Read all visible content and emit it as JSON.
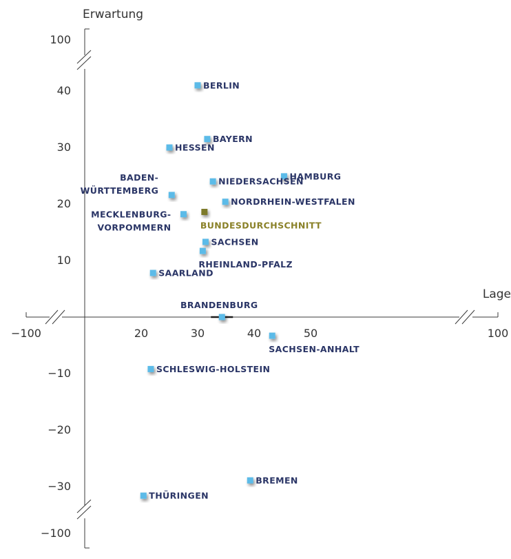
{
  "chart_data": {
    "type": "scatter",
    "xlabel": "Lage",
    "ylabel": "Erwartung",
    "xlim": [
      10,
      60
    ],
    "ylim": [
      -35,
      45
    ],
    "axis_break_x": true,
    "axis_break_y": true,
    "x_ticks": [
      {
        "label": "−100",
        "at": -100
      },
      {
        "label": "20",
        "at": 20
      },
      {
        "label": "30",
        "at": 30
      },
      {
        "label": "40",
        "at": 40
      },
      {
        "label": "50",
        "at": 50
      },
      {
        "label": "100",
        "at": 100
      }
    ],
    "y_ticks": [
      {
        "label": "100",
        "at": 100
      },
      {
        "label": "40",
        "at": 40
      },
      {
        "label": "30",
        "at": 30
      },
      {
        "label": "20",
        "at": 20
      },
      {
        "label": "10",
        "at": 10
      },
      {
        "label": "−10",
        "at": -10
      },
      {
        "label": "−20",
        "at": -20
      },
      {
        "label": "−30",
        "at": -30
      },
      {
        "label": "−100",
        "at": -100
      }
    ],
    "grid": false,
    "colors": {
      "point": "#5bbbe8",
      "average": "#7d7a2c",
      "label": "#2a3566",
      "average_label": "#8a8128"
    },
    "points": [
      {
        "name": "BERLIN",
        "x": 30,
        "y": 41,
        "placement": "right"
      },
      {
        "name": "HESSEN",
        "x": 25,
        "y": 30,
        "placement": "right"
      },
      {
        "name": "BAYERN",
        "x": 31.7,
        "y": 31.5,
        "placement": "right"
      },
      {
        "name": "HAMBURG",
        "x": 45.3,
        "y": 24.9,
        "placement": "right"
      },
      {
        "name": "BADEN-\nWÜRTTEMBERG",
        "x": 25.4,
        "y": 21.6,
        "placement": "left-above"
      },
      {
        "name": "NIEDERSACHSEN",
        "x": 32.7,
        "y": 24,
        "placement": "right"
      },
      {
        "name": "NORDRHEIN-WESTFALEN",
        "x": 34.9,
        "y": 20.4,
        "placement": "right"
      },
      {
        "name": "MECKLENBURG-\nVORPOMMERN",
        "x": 27.5,
        "y": 18.2,
        "placement": "left"
      },
      {
        "name": "BUNDESDURCHSCHNITT",
        "x": 31.2,
        "y": 18.6,
        "placement": "below",
        "average": true
      },
      {
        "name": "SACHSEN",
        "x": 31.4,
        "y": 13.3,
        "placement": "right"
      },
      {
        "name": "RHEINLAND-PFALZ",
        "x": 30.9,
        "y": 11.7,
        "placement": "below"
      },
      {
        "name": "SAARLAND",
        "x": 22.1,
        "y": 7.8,
        "placement": "right"
      },
      {
        "name": "BRANDENBURG",
        "x": 34.3,
        "y": 0,
        "placement": "above"
      },
      {
        "name": "SACHSEN-ANHALT",
        "x": 43.2,
        "y": -3.3,
        "placement": "below"
      },
      {
        "name": "SCHLESWIG-HOLSTEIN",
        "x": 21.7,
        "y": -9.2,
        "placement": "right"
      },
      {
        "name": "BREMEN",
        "x": 39.3,
        "y": -28.9,
        "placement": "right"
      },
      {
        "name": "THÜRINGEN",
        "x": 20.4,
        "y": -31.6,
        "placement": "right"
      }
    ]
  }
}
